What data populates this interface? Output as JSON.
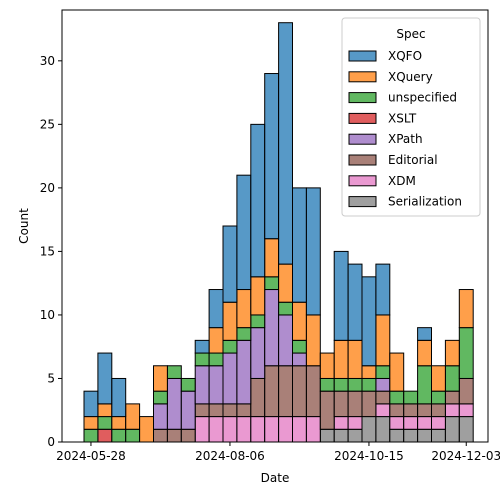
{
  "chart_data": {
    "type": "bar",
    "stacked": true,
    "xlabel": "Date",
    "ylabel": "Count",
    "ylim": [
      0,
      34
    ],
    "y_ticks": [
      0,
      5,
      10,
      15,
      20,
      25,
      30
    ],
    "x_ticks": [
      {
        "label": "2024-05-28",
        "bin": 0
      },
      {
        "label": "2024-08-06",
        "bin": 10
      },
      {
        "label": "2024-10-15",
        "bin": 20
      },
      {
        "label": "2024-12-03",
        "bin": 27
      }
    ],
    "legend": {
      "title": "Spec",
      "placement": "upper right"
    },
    "bin_count": 28,
    "series": [
      {
        "name": "Serialization",
        "color": "#7f7f7f",
        "values": [
          0,
          0,
          0,
          0,
          0,
          0,
          0,
          0,
          0,
          0,
          0,
          0,
          0,
          0,
          0,
          0,
          0,
          1,
          1,
          1,
          2,
          2,
          1,
          1,
          1,
          1,
          2,
          2
        ]
      },
      {
        "name": "XDM",
        "color": "#e377c2",
        "values": [
          0,
          0,
          0,
          0,
          0,
          0,
          0,
          0,
          2,
          2,
          2,
          2,
          2,
          2,
          2,
          2,
          2,
          0,
          1,
          1,
          0,
          1,
          1,
          1,
          1,
          1,
          1,
          1
        ]
      },
      {
        "name": "Editorial",
        "color": "#8c564b",
        "values": [
          0,
          0,
          0,
          0,
          0,
          1,
          1,
          1,
          1,
          1,
          1,
          1,
          3,
          4,
          4,
          4,
          4,
          3,
          2,
          2,
          2,
          1,
          1,
          1,
          1,
          1,
          1,
          2
        ]
      },
      {
        "name": "XPath",
        "color": "#9467bd",
        "values": [
          0,
          0,
          0,
          0,
          0,
          2,
          4,
          3,
          3,
          3,
          4,
          5,
          4,
          6,
          4,
          1,
          0,
          0,
          0,
          0,
          0,
          1,
          0,
          0,
          0,
          0,
          0,
          0
        ]
      },
      {
        "name": "XSLT",
        "color": "#d62728",
        "values": [
          0,
          1,
          0,
          0,
          0,
          0,
          0,
          0,
          0,
          0,
          0,
          0,
          0,
          0,
          0,
          0,
          0,
          0,
          0,
          0,
          0,
          0,
          0,
          0,
          0,
          0,
          0,
          0
        ]
      },
      {
        "name": "unspecified",
        "color": "#2ca02c",
        "values": [
          1,
          1,
          1,
          1,
          0,
          1,
          1,
          1,
          1,
          1,
          1,
          1,
          1,
          1,
          1,
          1,
          0,
          1,
          1,
          1,
          1,
          1,
          1,
          1,
          3,
          1,
          2,
          4
        ]
      },
      {
        "name": "XQuery",
        "color": "#ff7f0e",
        "values": [
          1,
          1,
          1,
          2,
          2,
          2,
          0,
          0,
          0,
          2,
          3,
          3,
          3,
          3,
          3,
          3,
          4,
          2,
          3,
          3,
          1,
          4,
          3,
          0,
          2,
          2,
          2,
          3
        ]
      },
      {
        "name": "XQFO",
        "color": "#1f77b4",
        "values": [
          2,
          4,
          3,
          0,
          0,
          0,
          0,
          0,
          1,
          3,
          6,
          9,
          12,
          13,
          19,
          9,
          10,
          0,
          7,
          6,
          7,
          4,
          0,
          0,
          1,
          0,
          0,
          0
        ]
      }
    ]
  }
}
